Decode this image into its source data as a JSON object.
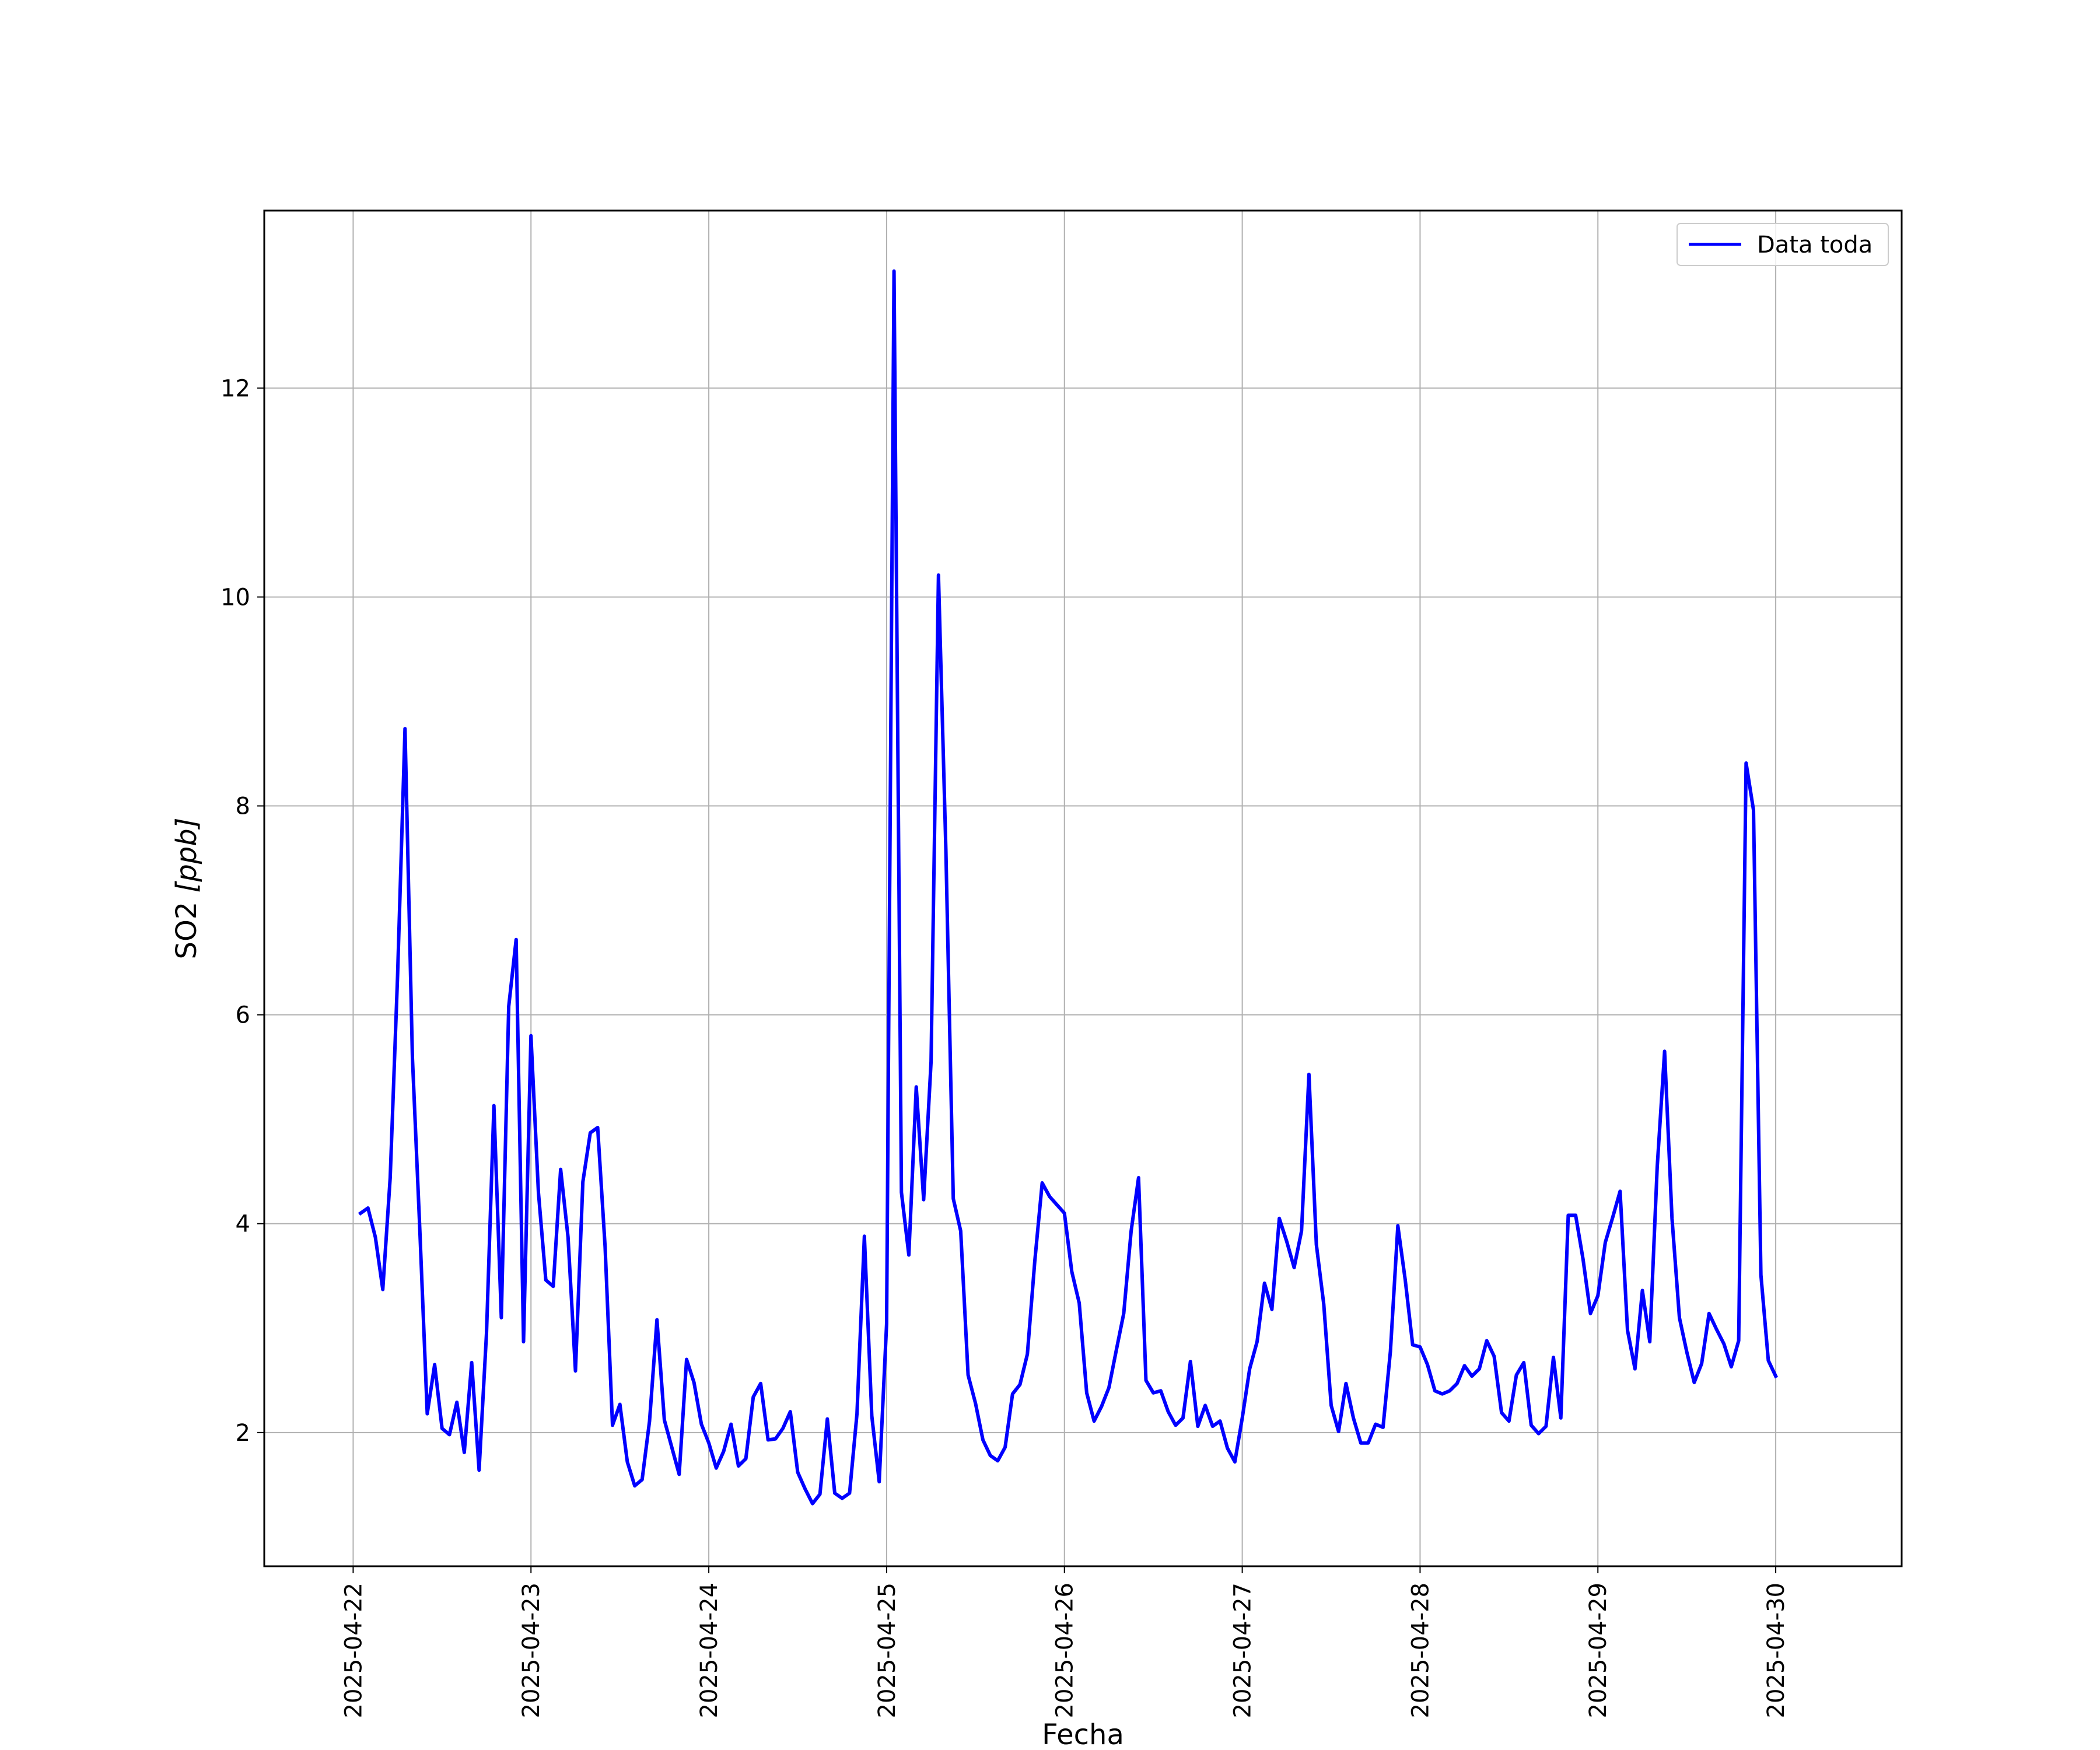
{
  "chart_data": {
    "type": "line",
    "title": "",
    "xlabel": "Fecha",
    "ylabel_text": "SO2 ",
    "ylabel_unit": "[ppb]",
    "x_ticks": [
      "2025-04-22",
      "2025-04-23",
      "2025-04-24",
      "2025-04-25",
      "2025-04-26",
      "2025-04-27",
      "2025-04-28",
      "2025-04-29",
      "2025-04-30"
    ],
    "y_ticks": [
      2,
      4,
      6,
      8,
      10,
      12
    ],
    "xlim": [
      "2025-04-21 12:00",
      "2025-04-30 17:00"
    ],
    "ylim": [
      0.72,
      13.7
    ],
    "grid": true,
    "legend_position": "top-right",
    "colors": {
      "series": "#0000ff",
      "grid": "#b0b0b0",
      "axes": "#000000"
    },
    "series": [
      {
        "name": "Data toda",
        "x": [
          "2025-04-22 01:00",
          "2025-04-22 02:00",
          "2025-04-22 03:00",
          "2025-04-22 04:00",
          "2025-04-22 05:00",
          "2025-04-22 06:00",
          "2025-04-22 07:00",
          "2025-04-22 08:00",
          "2025-04-22 09:00",
          "2025-04-22 10:00",
          "2025-04-22 11:00",
          "2025-04-22 12:00",
          "2025-04-22 13:00",
          "2025-04-22 14:00",
          "2025-04-22 15:00",
          "2025-04-22 16:00",
          "2025-04-22 17:00",
          "2025-04-22 18:00",
          "2025-04-22 19:00",
          "2025-04-22 20:00",
          "2025-04-22 21:00",
          "2025-04-22 22:00",
          "2025-04-22 23:00",
          "2025-04-23 00:00",
          "2025-04-23 01:00",
          "2025-04-23 02:00",
          "2025-04-23 03:00",
          "2025-04-23 04:00",
          "2025-04-23 05:00",
          "2025-04-23 06:00",
          "2025-04-23 07:00",
          "2025-04-23 08:00",
          "2025-04-23 09:00",
          "2025-04-23 10:00",
          "2025-04-23 11:00",
          "2025-04-23 12:00",
          "2025-04-23 13:00",
          "2025-04-23 14:00",
          "2025-04-23 15:00",
          "2025-04-23 16:00",
          "2025-04-23 17:00",
          "2025-04-23 18:00",
          "2025-04-23 19:00",
          "2025-04-23 20:00",
          "2025-04-23 21:00",
          "2025-04-23 22:00",
          "2025-04-23 23:00",
          "2025-04-24 00:00",
          "2025-04-24 01:00",
          "2025-04-24 02:00",
          "2025-04-24 03:00",
          "2025-04-24 04:00",
          "2025-04-24 05:00",
          "2025-04-24 06:00",
          "2025-04-24 07:00",
          "2025-04-24 08:00",
          "2025-04-24 09:00",
          "2025-04-24 10:00",
          "2025-04-24 11:00",
          "2025-04-24 12:00",
          "2025-04-24 13:00",
          "2025-04-24 14:00",
          "2025-04-24 15:00",
          "2025-04-24 16:00",
          "2025-04-24 17:00",
          "2025-04-24 18:00",
          "2025-04-24 19:00",
          "2025-04-24 20:00",
          "2025-04-24 21:00",
          "2025-04-24 22:00",
          "2025-04-24 23:00",
          "2025-04-25 00:00",
          "2025-04-25 01:00",
          "2025-04-25 02:00",
          "2025-04-25 03:00",
          "2025-04-25 04:00",
          "2025-04-25 05:00",
          "2025-04-25 06:00",
          "2025-04-25 07:00",
          "2025-04-25 08:00",
          "2025-04-25 09:00",
          "2025-04-25 10:00",
          "2025-04-25 11:00",
          "2025-04-25 12:00",
          "2025-04-25 13:00",
          "2025-04-25 14:00",
          "2025-04-25 15:00",
          "2025-04-25 16:00",
          "2025-04-25 17:00",
          "2025-04-25 18:00",
          "2025-04-25 19:00",
          "2025-04-25 20:00",
          "2025-04-25 21:00",
          "2025-04-25 22:00",
          "2025-04-25 23:00",
          "2025-04-26 00:00",
          "2025-04-26 01:00",
          "2025-04-26 02:00",
          "2025-04-26 03:00",
          "2025-04-26 04:00",
          "2025-04-26 05:00",
          "2025-04-26 06:00",
          "2025-04-26 07:00",
          "2025-04-26 08:00",
          "2025-04-26 09:00",
          "2025-04-26 10:00",
          "2025-04-26 11:00",
          "2025-04-26 12:00",
          "2025-04-26 13:00",
          "2025-04-26 14:00",
          "2025-04-26 15:00",
          "2025-04-26 16:00",
          "2025-04-26 17:00",
          "2025-04-26 18:00",
          "2025-04-26 19:00",
          "2025-04-26 20:00",
          "2025-04-26 21:00",
          "2025-04-26 22:00",
          "2025-04-26 23:00",
          "2025-04-27 00:00",
          "2025-04-27 01:00",
          "2025-04-27 02:00",
          "2025-04-27 03:00",
          "2025-04-27 04:00",
          "2025-04-27 05:00",
          "2025-04-27 06:00",
          "2025-04-27 07:00",
          "2025-04-27 08:00",
          "2025-04-27 09:00",
          "2025-04-27 10:00",
          "2025-04-27 11:00",
          "2025-04-27 12:00",
          "2025-04-27 13:00",
          "2025-04-27 14:00",
          "2025-04-27 15:00",
          "2025-04-27 16:00",
          "2025-04-27 17:00",
          "2025-04-27 18:00",
          "2025-04-27 19:00",
          "2025-04-27 20:00",
          "2025-04-27 21:00",
          "2025-04-27 22:00",
          "2025-04-27 23:00",
          "2025-04-28 00:00",
          "2025-04-28 01:00",
          "2025-04-28 02:00",
          "2025-04-28 03:00",
          "2025-04-28 04:00",
          "2025-04-28 05:00",
          "2025-04-28 06:00",
          "2025-04-28 07:00",
          "2025-04-28 08:00",
          "2025-04-28 09:00",
          "2025-04-28 10:00",
          "2025-04-28 11:00",
          "2025-04-28 12:00",
          "2025-04-28 13:00",
          "2025-04-28 14:00",
          "2025-04-28 15:00",
          "2025-04-28 16:00",
          "2025-04-28 17:00",
          "2025-04-28 18:00",
          "2025-04-28 19:00",
          "2025-04-28 20:00",
          "2025-04-28 21:00",
          "2025-04-28 22:00",
          "2025-04-28 23:00",
          "2025-04-29 00:00",
          "2025-04-29 01:00",
          "2025-04-29 02:00",
          "2025-04-29 03:00",
          "2025-04-29 04:00",
          "2025-04-29 05:00",
          "2025-04-29 06:00",
          "2025-04-29 07:00",
          "2025-04-29 08:00",
          "2025-04-29 09:00",
          "2025-04-29 10:00",
          "2025-04-29 11:00",
          "2025-04-29 12:00",
          "2025-04-29 13:00",
          "2025-04-29 14:00",
          "2025-04-29 15:00",
          "2025-04-29 16:00",
          "2025-04-29 17:00",
          "2025-04-29 18:00",
          "2025-04-29 19:00",
          "2025-04-29 20:00",
          "2025-04-29 21:00",
          "2025-04-29 22:00",
          "2025-04-29 23:00",
          "2025-04-30 00:00"
        ],
        "y": [
          4.1,
          4.15,
          3.87,
          3.37,
          4.44,
          6.38,
          8.74,
          5.59,
          3.94,
          2.18,
          2.65,
          2.04,
          1.98,
          2.29,
          1.81,
          2.67,
          1.64,
          2.95,
          5.13,
          3.1,
          6.08,
          6.72,
          2.87,
          5.8,
          4.3,
          3.46,
          3.4,
          4.52,
          3.87,
          2.59,
          4.4,
          4.87,
          4.92,
          3.78,
          2.07,
          2.27,
          1.72,
          1.49,
          1.55,
          2.11,
          3.08,
          2.12,
          1.86,
          1.6,
          2.7,
          2.48,
          2.08,
          1.9,
          1.66,
          1.82,
          2.08,
          1.68,
          1.75,
          2.34,
          2.47,
          1.93,
          1.94,
          2.04,
          2.2,
          1.62,
          1.46,
          1.32,
          1.41,
          2.13,
          1.42,
          1.37,
          1.42,
          2.18,
          3.88,
          2.16,
          1.53,
          3.04,
          13.12,
          4.3,
          3.7,
          5.31,
          4.23,
          5.55,
          10.21,
          7.58,
          4.24,
          3.93,
          2.55,
          2.28,
          1.93,
          1.78,
          1.73,
          1.86,
          2.37,
          2.46,
          2.75,
          3.64,
          4.39,
          4.26,
          4.18,
          4.1,
          3.54,
          3.24,
          2.38,
          2.11,
          2.25,
          2.43,
          2.79,
          3.14,
          3.93,
          4.44,
          2.5,
          2.38,
          2.4,
          2.2,
          2.07,
          2.14,
          2.68,
          2.06,
          2.26,
          2.06,
          2.11,
          1.85,
          1.72,
          2.14,
          2.61,
          2.87,
          3.43,
          3.18,
          4.05,
          3.83,
          3.58,
          3.93,
          5.43,
          3.8,
          3.23,
          2.26,
          2.01,
          2.47,
          2.14,
          1.9,
          1.9,
          2.08,
          2.05,
          2.78,
          3.98,
          3.46,
          2.84,
          2.82,
          2.65,
          2.4,
          2.37,
          2.4,
          2.47,
          2.64,
          2.54,
          2.61,
          2.88,
          2.73,
          2.19,
          2.11,
          2.55,
          2.67,
          2.07,
          1.99,
          2.06,
          2.72,
          2.14,
          4.08,
          4.08,
          3.66,
          3.14,
          3.31,
          3.82,
          4.06,
          4.31,
          2.98,
          2.61,
          3.36,
          2.87,
          4.54,
          5.65,
          4.05,
          3.1,
          2.77,
          2.48,
          2.66,
          3.14,
          2.99,
          2.85,
          2.63,
          2.88,
          8.41,
          7.96,
          3.51,
          2.69,
          2.54
        ]
      }
    ]
  }
}
